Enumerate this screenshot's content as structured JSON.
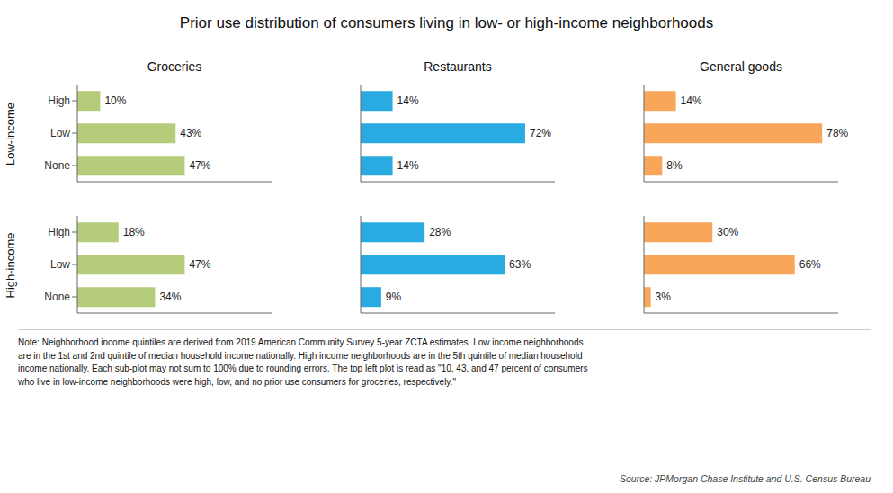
{
  "title": "Prior use distribution of consumers living in low- or high-income neighborhoods",
  "annotations": [
    "Note: Neighborhood income quintiles are derived from 2019 American Community Survey 5-year ZCTA estimates. Low income neighborhoods\nare in the 1st and 2nd quintile of median household income nationally. High income neighborhoods are in the 5th quintile of median household\nincome nationally. Each sub-plot may not sum to 100% due to rounding errors. The top left plot is read as \"10, 43, and 47 percent of consumers\nwho live in low-income neighborhoods were high, low, and no prior use consumers for groceries, respectively.\"",
    "Source: JPMorgan Chase Institute and U.S. Census Bureau"
  ],
  "chart_data": [
    {
      "type": "bar",
      "orientation": "horizontal",
      "title": "Groceries",
      "ylabel": "Low-income",
      "categories": [
        "High",
        "Low",
        "None"
      ],
      "values": [
        10,
        43,
        47
      ],
      "value_labels": [
        "10%",
        "43%",
        "47%"
      ],
      "data_labels": true,
      "color": "#b5cc7a",
      "xlim": [
        0,
        85
      ],
      "tick_labels": "y",
      "grid": false
    },
    {
      "type": "bar",
      "orientation": "horizontal",
      "title": "Restaurants",
      "categories": [
        "High",
        "Low",
        "None"
      ],
      "values": [
        14,
        72,
        14
      ],
      "value_labels": [
        "14%",
        "72%",
        "14%"
      ],
      "data_labels": true,
      "color": "#29abe2",
      "xlim": [
        0,
        85
      ],
      "tick_labels": false,
      "grid": false
    },
    {
      "type": "bar",
      "orientation": "horizontal",
      "title": "General goods",
      "categories": [
        "High",
        "Low",
        "None"
      ],
      "values": [
        14,
        78,
        8
      ],
      "value_labels": [
        "14%",
        "78%",
        "8%"
      ],
      "data_labels": true,
      "color": "#f9a55a",
      "xlim": [
        0,
        85
      ],
      "tick_labels": false,
      "grid": false
    },
    {
      "type": "bar",
      "orientation": "horizontal",
      "ylabel": "High-income",
      "categories": [
        "High",
        "Low",
        "None"
      ],
      "values": [
        18,
        47,
        34
      ],
      "value_labels": [
        "18%",
        "47%",
        "34%"
      ],
      "data_labels": true,
      "color": "#b5cc7a",
      "xlim": [
        0,
        85
      ],
      "tick_labels": "y",
      "grid": false
    },
    {
      "type": "bar",
      "orientation": "horizontal",
      "categories": [
        "High",
        "Low",
        "None"
      ],
      "values": [
        28,
        63,
        9
      ],
      "value_labels": [
        "28%",
        "63%",
        "9%"
      ],
      "data_labels": true,
      "color": "#29abe2",
      "xlim": [
        0,
        85
      ],
      "tick_labels": false,
      "grid": false
    },
    {
      "type": "bar",
      "orientation": "horizontal",
      "categories": [
        "High",
        "Low",
        "None"
      ],
      "values": [
        30,
        66,
        3
      ],
      "value_labels": [
        "30%",
        "66%",
        "3%"
      ],
      "data_labels": true,
      "color": "#f9a55a",
      "xlim": [
        0,
        85
      ],
      "tick_labels": false,
      "grid": false
    }
  ]
}
